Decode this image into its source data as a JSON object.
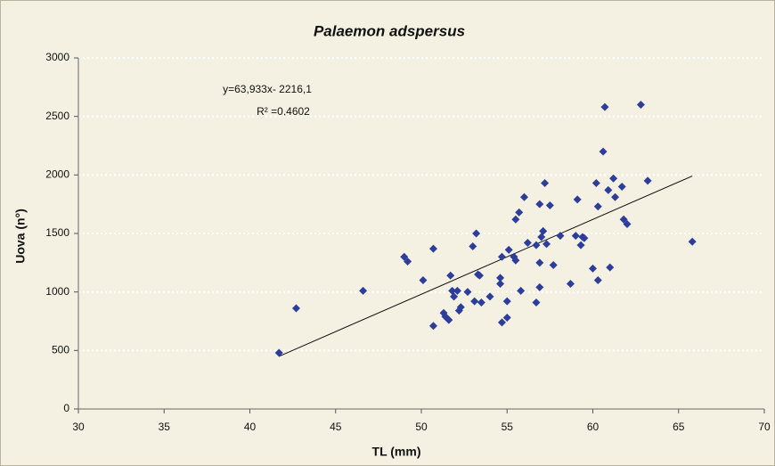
{
  "chart_data": {
    "type": "scatter",
    "title": "Palaemon adspersus",
    "x_label": "TL (mm)",
    "y_label": "Uova (n°)",
    "x": [
      41.7,
      42.7,
      46.6,
      49.0,
      49.2,
      50.1,
      50.7,
      50.7,
      51.3,
      51.4,
      51.6,
      51.7,
      51.8,
      51.9,
      52.1,
      52.2,
      52.3,
      52.7,
      53.0,
      53.1,
      53.2,
      53.3,
      53.4,
      53.5,
      54.0,
      54.6,
      54.6,
      54.7,
      54.7,
      55.0,
      55.0,
      55.1,
      55.4,
      55.5,
      55.5,
      55.7,
      55.8,
      56.0,
      56.2,
      56.7,
      56.7,
      56.9,
      56.9,
      56.9,
      57.0,
      57.1,
      57.2,
      57.3,
      57.5,
      57.7,
      58.1,
      58.7,
      59.0,
      59.1,
      59.3,
      59.4,
      59.5,
      60.0,
      60.2,
      60.3,
      60.3,
      60.6,
      60.7,
      60.9,
      61.0,
      61.2,
      61.3,
      61.7,
      61.8,
      62.0,
      62.8,
      63.2,
      65.8
    ],
    "values": [
      480,
      860,
      1010,
      1300,
      1260,
      1100,
      710,
      1370,
      820,
      790,
      760,
      1140,
      1010,
      960,
      1010,
      840,
      870,
      1000,
      1390,
      920,
      1500,
      1150,
      1140,
      910,
      960,
      1070,
      1120,
      1300,
      740,
      920,
      780,
      1360,
      1300,
      1270,
      1620,
      1680,
      1010,
      1810,
      1420,
      910,
      1400,
      1040,
      1250,
      1750,
      1470,
      1520,
      1930,
      1410,
      1740,
      1230,
      1480,
      1070,
      1480,
      1790,
      1400,
      1470,
      1460,
      1200,
      1930,
      1100,
      1730,
      2200,
      2580,
      1870,
      1210,
      1970,
      1810,
      1900,
      1620,
      1580,
      2600,
      1950,
      1430
    ],
    "color": "#2c3d9c",
    "trendline": {
      "slope": 63.933,
      "intercept": -2216.1,
      "label": "y=63,933x- 2216,1",
      "color": "#111111"
    },
    "r_squared": {
      "value": 0.4602,
      "label": "R² =0,4602"
    },
    "xlim": [
      30,
      70
    ],
    "ylim": [
      0,
      3000
    ],
    "xticks": [
      30,
      35,
      40,
      45,
      50,
      55,
      60,
      65,
      70
    ],
    "yticks": [
      0,
      500,
      1000,
      1500,
      2000,
      2500,
      3000
    ],
    "grid": true
  }
}
